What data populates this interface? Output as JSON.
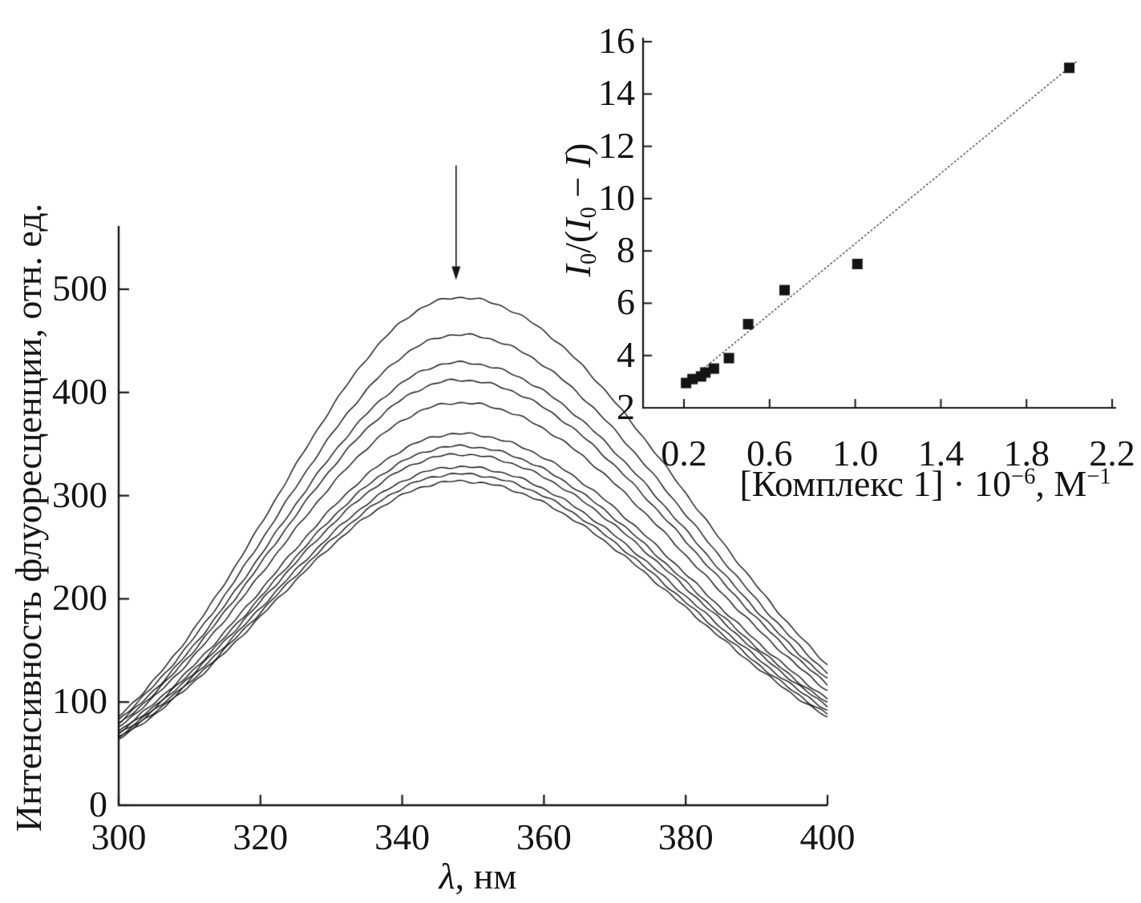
{
  "figure": {
    "background": "#ffffff",
    "ink": "#141414",
    "description": "Fluorescence quenching spectra with Stern-Volmer type inset plot"
  },
  "chart_data": [
    {
      "id": "main-spectra",
      "type": "line",
      "title": "",
      "xlabel_parts": [
        {
          "t": "λ",
          "i": 1
        },
        {
          "t": ", нм"
        }
      ],
      "ylabel": "Интенсивность флуоресценции, отн. ед.",
      "xlim": [
        300,
        400
      ],
      "ylim": [
        0,
        561
      ],
      "grid": false,
      "legend": "none",
      "x_ticks": [
        "300",
        "320",
        "340",
        "360",
        "380",
        "400"
      ],
      "x_tick_values": [
        300,
        320,
        340,
        360,
        380,
        400
      ],
      "y_ticks": [
        "0",
        "100",
        "200",
        "300",
        "400",
        "500"
      ],
      "y_tick_values": [
        0,
        100,
        200,
        300,
        400,
        500
      ],
      "peak_nm": 348,
      "series_note": "11 emission spectra, peak intensity decreasing top to bottom (quenching), arrow marks decrease at ~348 nm",
      "series": [
        {
          "name": "spectrum-01",
          "peak": 492,
          "start": 86,
          "end": 136
        },
        {
          "name": "spectrum-02",
          "peak": 456,
          "start": 83,
          "end": 128
        },
        {
          "name": "spectrum-03",
          "peak": 429,
          "start": 80,
          "end": 122
        },
        {
          "name": "spectrum-04",
          "peak": 412,
          "start": 78,
          "end": 117
        },
        {
          "name": "spectrum-05",
          "peak": 390,
          "start": 76,
          "end": 111
        },
        {
          "name": "spectrum-06",
          "peak": 360,
          "start": 72,
          "end": 103
        },
        {
          "name": "spectrum-07",
          "peak": 348,
          "start": 70,
          "end": 99
        },
        {
          "name": "spectrum-08",
          "peak": 340,
          "start": 68.5,
          "end": 96
        },
        {
          "name": "spectrum-09",
          "peak": 328,
          "start": 67,
          "end": 92
        },
        {
          "name": "spectrum-10",
          "peak": 321,
          "start": 65.5,
          "end": 88
        },
        {
          "name": "spectrum-11",
          "peak": 314,
          "start": 64,
          "end": 85
        }
      ],
      "arrow": {
        "x_nm": 347.6,
        "y_from": 620,
        "y_to": 509,
        "direction": "down"
      }
    },
    {
      "id": "inset-stern-volmer",
      "type": "scatter",
      "title": "",
      "xlabel_parts": [
        {
          "t": "[Комплекс 1] · 10"
        },
        {
          "t": "−6",
          "sup": 1
        },
        {
          "t": ", М"
        },
        {
          "t": "−1",
          "sup": 1
        }
      ],
      "ylabel_parts": [
        {
          "t": "I",
          "i": 1
        },
        {
          "t": "0",
          "sub": 1
        },
        {
          "t": "/("
        },
        {
          "t": "I",
          "i": 1
        },
        {
          "t": "0",
          "sub": 1
        },
        {
          "t": " − "
        },
        {
          "t": "I",
          "i": 1
        },
        {
          "t": ")"
        }
      ],
      "xlim": [
        0.01,
        2.22
      ],
      "ylim": [
        2,
        16.2
      ],
      "grid": false,
      "legend": "none",
      "x_ticks": [
        "0.2",
        "0.6",
        "1.0",
        "1.4",
        "1.8",
        "2.2"
      ],
      "x_tick_values": [
        0.2,
        0.6,
        1.0,
        1.4,
        1.8,
        2.2
      ],
      "y_ticks": [
        "2",
        "4",
        "6",
        "8",
        "10",
        "12",
        "14",
        "16"
      ],
      "y_tick_values": [
        2,
        4,
        6,
        8,
        10,
        12,
        14,
        16
      ],
      "marker": "filled-square",
      "points": [
        [
          0.21,
          2.95
        ],
        [
          0.24,
          3.1
        ],
        [
          0.28,
          3.2
        ],
        [
          0.3,
          3.35
        ],
        [
          0.34,
          3.5
        ],
        [
          0.41,
          3.9
        ],
        [
          0.5,
          5.2
        ],
        [
          0.67,
          6.5
        ],
        [
          1.01,
          7.5
        ],
        [
          2.0,
          15.0
        ]
      ],
      "fit_line": {
        "x1": 0.205,
        "y1": 2.92,
        "x2": 2.035,
        "y2": 15.25,
        "style": "dotted"
      }
    }
  ]
}
